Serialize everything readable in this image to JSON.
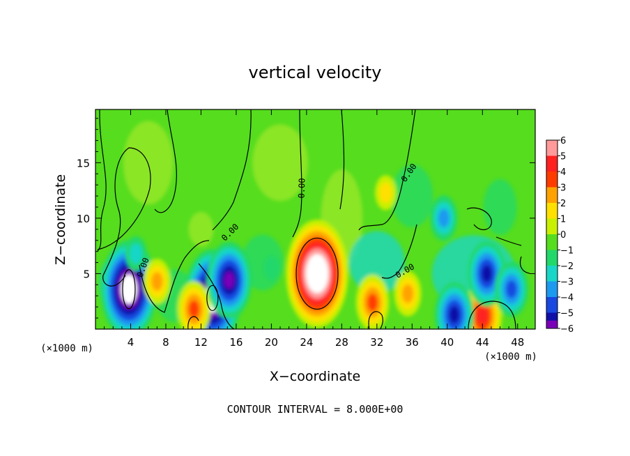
{
  "chart_data": {
    "type": "heatmap",
    "title": "vertical velocity",
    "xlabel": "X−coordinate",
    "ylabel": "Z−coordinate",
    "x_unit": "(×1000 m)",
    "y_unit": "(×1000 m)",
    "footer": "CONTOUR INTERVAL = 8.000E+00",
    "xlim": [
      0,
      50
    ],
    "ylim": [
      0,
      19.8
    ],
    "x_ticks": [
      4,
      8,
      12,
      16,
      20,
      24,
      28,
      32,
      36,
      40,
      44,
      48
    ],
    "y_ticks": [
      5,
      10,
      15
    ],
    "colorbar": {
      "levels": [
        6,
        5,
        4,
        3,
        2,
        1,
        0,
        -1,
        -2,
        -3,
        -4,
        -5,
        -6
      ],
      "labels": [
        "6",
        "5",
        "4",
        "3",
        "2",
        "1",
        "0",
        "−1",
        "−2",
        "−3",
        "−4",
        "−5",
        "−6"
      ],
      "colors": [
        "#ff9a9a",
        "#ff2020",
        "#ff3c00",
        "#ffa200",
        "#ffe000",
        "#c8f000",
        "#55dd1e",
        "#22d86a",
        "#19d6c8",
        "#1c9af0",
        "#1848e0",
        "#1010a8",
        "#7a00b8"
      ]
    },
    "contour_labels": [
      "0.00",
      "0.00",
      "0.00",
      "0.00",
      "0.00"
    ],
    "features": [
      {
        "x": 3.8,
        "z": 3.6,
        "value": -8
      },
      {
        "x": 13.3,
        "z": 2.8,
        "value": -8
      },
      {
        "x": 15.2,
        "z": 4.4,
        "value": -6
      },
      {
        "x": 25.2,
        "z": 5.0,
        "value": 9
      },
      {
        "x": 7.0,
        "z": 4.3,
        "value": 3
      },
      {
        "x": 11.2,
        "z": 1.8,
        "value": 4
      },
      {
        "x": 31.5,
        "z": 2.4,
        "value": 4
      },
      {
        "x": 35.5,
        "z": 3.2,
        "value": 3
      },
      {
        "x": 33.0,
        "z": 12.3,
        "value": 2
      },
      {
        "x": 44.0,
        "z": 1.2,
        "value": 5
      },
      {
        "x": 44.5,
        "z": 5.0,
        "value": -5
      },
      {
        "x": 47.3,
        "z": 3.6,
        "value": -4
      },
      {
        "x": 39.6,
        "z": 10.0,
        "value": -3
      },
      {
        "x": 40.8,
        "z": 1.3,
        "value": -5
      },
      {
        "x": 20.0,
        "z": 5.5,
        "value": -1
      },
      {
        "x": 4.6,
        "z": 6.8,
        "value": -2
      }
    ]
  }
}
